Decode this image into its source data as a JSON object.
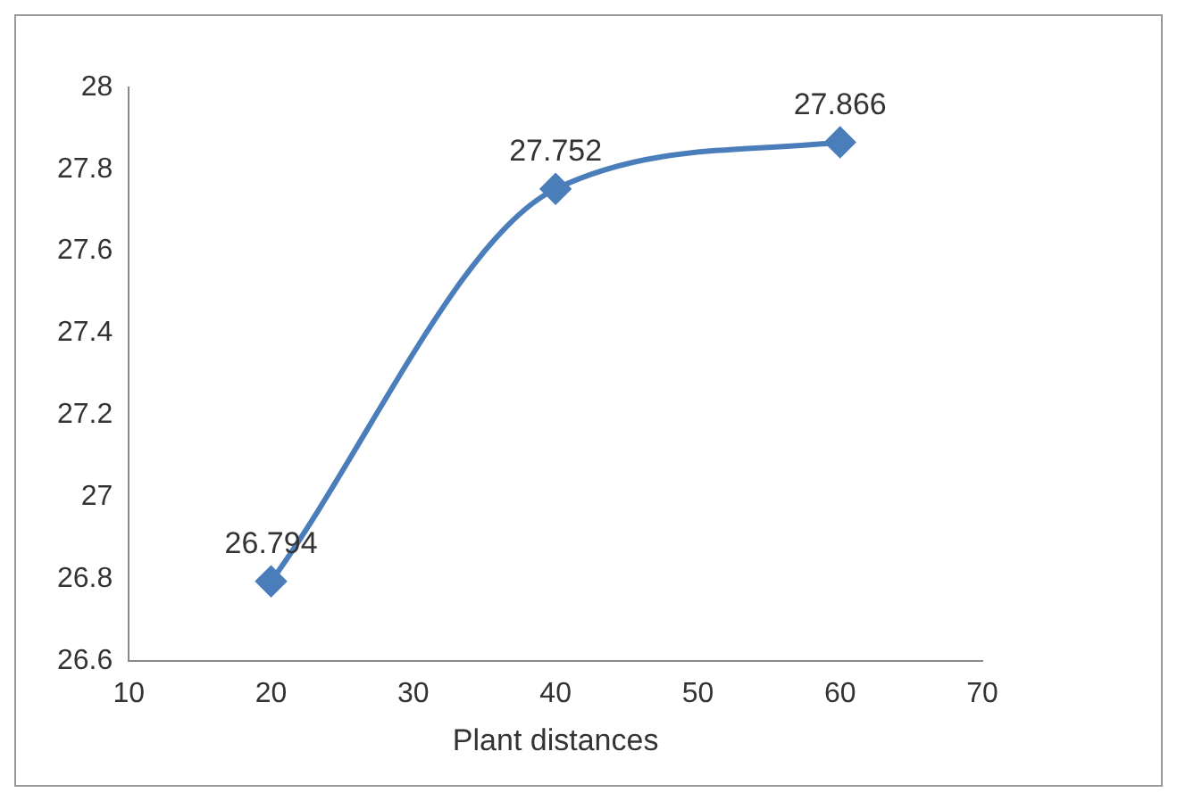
{
  "chart_data": {
    "type": "line",
    "xlabel": "Plant distances",
    "x": [
      20,
      40,
      60
    ],
    "series": [
      {
        "color": "#4a7ebb",
        "values": [
          26.794,
          27.752,
          27.866
        ]
      }
    ],
    "xlim": [
      10,
      70
    ],
    "xticks": [
      10,
      20,
      30,
      40,
      50,
      60,
      70
    ],
    "ylim": [
      26.6,
      28
    ],
    "yticks": [
      26.6,
      26.8,
      27,
      27.2,
      27.4,
      27.6,
      27.8,
      28
    ],
    "grid": false,
    "legend": false,
    "marker": "diamond",
    "line_style": "solid",
    "data_labels": true
  }
}
